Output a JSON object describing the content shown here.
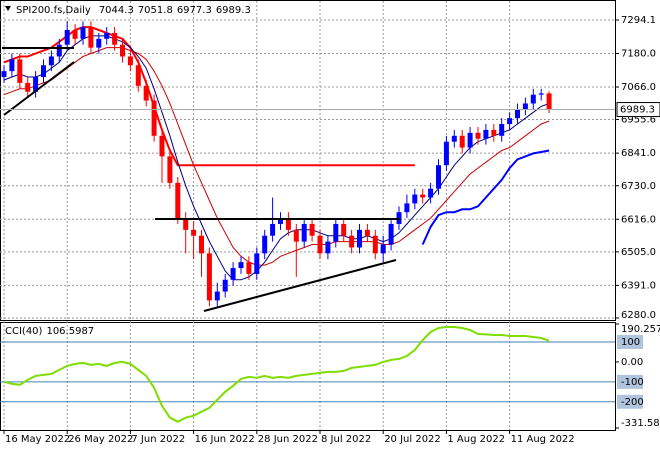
{
  "chart_data": [
    {
      "type": "candlestick",
      "title": "SPI200.fs,Daily",
      "categories": [
        "16 May 2022",
        null,
        null,
        null,
        null,
        null,
        null,
        null,
        "26 May 2022",
        null,
        null,
        null,
        null,
        null,
        null,
        null,
        "7 Jun 2022",
        null,
        null,
        null,
        null,
        null,
        null,
        null,
        "16 Jun 2022",
        null,
        null,
        null,
        null,
        null,
        null,
        null,
        "28 Jun 2022",
        null,
        null,
        null,
        null,
        null,
        null,
        null,
        "8 Jul 2022",
        null,
        null,
        null,
        null,
        null,
        null,
        null,
        "20 Jul 2022",
        null,
        null,
        null,
        null,
        null,
        null,
        null,
        "1 Aug 2022",
        null,
        null,
        null,
        null,
        null,
        null,
        null,
        "11 Aug 2022",
        null,
        null,
        null,
        null,
        null
      ],
      "open": [
        7100,
        7120,
        7160,
        7080,
        7050,
        7100,
        7140,
        7170,
        7210,
        7260,
        7230,
        7270,
        7200,
        7230,
        7250,
        7210,
        7170,
        7140,
        7070,
        7020,
        6900,
        6830,
        6740,
        6620,
        6580,
        6560,
        6500,
        6340,
        6370,
        6410,
        6450,
        6470,
        6430,
        6500,
        6560,
        6600,
        6620,
        6580,
        6540,
        6600,
        6560,
        6500,
        6540,
        6600,
        6560,
        6520,
        6580,
        6560,
        6500,
        6530,
        6600,
        6640,
        6670,
        6700,
        6690,
        6720,
        6800,
        6880,
        6900,
        6860,
        6910,
        6890,
        6920,
        6900,
        6940,
        6960,
        6990,
        7010,
        7040,
        7044.3
      ],
      "high": [
        7140,
        7180,
        7180,
        7100,
        7120,
        7160,
        7190,
        7230,
        7290,
        7280,
        7290,
        7290,
        7250,
        7270,
        7270,
        7230,
        7190,
        7160,
        7090,
        7040,
        6920,
        6850,
        6760,
        6640,
        6610,
        6580,
        6520,
        6400,
        6430,
        6470,
        6490,
        6490,
        6520,
        6580,
        6690,
        6640,
        6640,
        6600,
        6620,
        6620,
        6580,
        6560,
        6620,
        6620,
        6580,
        6600,
        6600,
        6580,
        6560,
        6620,
        6660,
        6700,
        6720,
        6720,
        6740,
        6820,
        6900,
        6920,
        6920,
        6930,
        6930,
        6940,
        6940,
        6960,
        6980,
        7010,
        7030,
        7060,
        7060,
        7051.8
      ],
      "low": [
        7080,
        7100,
        7060,
        7030,
        7030,
        7080,
        7120,
        7150,
        7190,
        7210,
        7210,
        7180,
        7180,
        7210,
        7190,
        7150,
        7120,
        7050,
        7000,
        6880,
        6740,
        6720,
        6600,
        6500,
        6480,
        6420,
        6320,
        6320,
        6350,
        6390,
        6430,
        6410,
        6410,
        6480,
        6540,
        6580,
        6560,
        6420,
        6520,
        6540,
        6480,
        6480,
        6520,
        6540,
        6500,
        6500,
        6540,
        6480,
        6470,
        6510,
        6580,
        6620,
        6650,
        6670,
        6670,
        6700,
        6780,
        6860,
        6840,
        6840,
        6870,
        6870,
        6880,
        6880,
        6920,
        6940,
        6970,
        6990,
        7020,
        6977.3
      ],
      "close": [
        7120,
        7160,
        7080,
        7050,
        7100,
        7140,
        7170,
        7210,
        7260,
        7230,
        7270,
        7200,
        7230,
        7250,
        7210,
        7170,
        7140,
        7070,
        7020,
        6900,
        6830,
        6740,
        6620,
        6580,
        6560,
        6500,
        6340,
        6370,
        6410,
        6450,
        6470,
        6430,
        6500,
        6560,
        6600,
        6620,
        6580,
        6540,
        6600,
        6560,
        6500,
        6540,
        6600,
        6560,
        6520,
        6580,
        6560,
        6500,
        6530,
        6600,
        6640,
        6670,
        6700,
        6690,
        6720,
        6800,
        6880,
        6900,
        6860,
        6910,
        6890,
        6920,
        6900,
        6940,
        6960,
        6990,
        7010,
        7040,
        7044.3,
        6989.3
      ],
      "up_color": "#0000ff",
      "down_color": "#ff0000",
      "lines": [
        {
          "color": "#ff0000",
          "width": 2,
          "values": [
            7150,
            7160,
            7170,
            7170,
            7180,
            7190,
            7200,
            7220,
            7240,
            7260,
            7270,
            7270,
            7260,
            7250,
            7240,
            7230,
            7200,
            7150,
            7080,
            7000,
            6920,
            6850,
            6800,
            6800,
            6800,
            6800,
            6800,
            6800,
            6800,
            6800,
            6800,
            6800,
            6800,
            6800,
            6800,
            6800,
            6800,
            6800,
            6800,
            6800,
            6800,
            6800,
            6800,
            6800,
            6800,
            6800,
            6800,
            6800,
            6800,
            6800,
            6800,
            6800,
            6800,
            null,
            null,
            null,
            null,
            null,
            null,
            null,
            null,
            null,
            null,
            null,
            null,
            null,
            null,
            null,
            null,
            null
          ]
        },
        {
          "color": "#cc0000",
          "width": 1,
          "values": [
            7040,
            7050,
            7060,
            7060,
            7070,
            7080,
            7090,
            7110,
            7130,
            7150,
            7170,
            7180,
            7190,
            7200,
            7200,
            7200,
            7190,
            7180,
            7160,
            7120,
            7070,
            7010,
            6940,
            6870,
            6800,
            6740,
            6680,
            6620,
            6570,
            6520,
            6490,
            6470,
            6460,
            6460,
            6470,
            6490,
            6500,
            6510,
            6520,
            6530,
            6530,
            6530,
            6540,
            6540,
            6540,
            6540,
            6540,
            6540,
            6530,
            6530,
            6540,
            6560,
            6580,
            6600,
            6620,
            6650,
            6680,
            6710,
            6740,
            6770,
            6790,
            6810,
            6830,
            6850,
            6860,
            6880,
            6900,
            6920,
            6940,
            6950
          ]
        },
        {
          "color": "#000080",
          "width": 1,
          "values": [
            7090,
            7100,
            7110,
            7100,
            7100,
            7110,
            7130,
            7150,
            7190,
            7210,
            7230,
            7240,
            7240,
            7240,
            7230,
            7220,
            7200,
            7170,
            7130,
            7060,
            6980,
            6900,
            6810,
            6730,
            6660,
            6600,
            6540,
            6490,
            6440,
            6410,
            6410,
            6420,
            6440,
            6470,
            6510,
            6550,
            6570,
            6580,
            6580,
            6580,
            6570,
            6560,
            6560,
            6560,
            6550,
            6550,
            6560,
            6550,
            6540,
            6550,
            6570,
            6600,
            6630,
            6660,
            6690,
            6720,
            6760,
            6800,
            6830,
            6860,
            6880,
            6890,
            6900,
            6910,
            6920,
            6940,
            6960,
            6980,
            7000,
            7010
          ]
        },
        {
          "color": "#0000ff",
          "width": 2,
          "values": [
            null,
            null,
            null,
            null,
            null,
            null,
            null,
            null,
            null,
            null,
            null,
            null,
            null,
            null,
            null,
            null,
            null,
            null,
            null,
            null,
            null,
            null,
            null,
            null,
            null,
            null,
            null,
            null,
            null,
            null,
            null,
            null,
            null,
            null,
            null,
            null,
            null,
            null,
            null,
            null,
            null,
            null,
            null,
            null,
            null,
            null,
            null,
            null,
            null,
            null,
            null,
            null,
            null,
            6530,
            6590,
            6630,
            6640,
            6640,
            6650,
            6650,
            6660,
            6690,
            6720,
            6750,
            6790,
            6820,
            6830,
            6840,
            6845,
            6850
          ]
        }
      ],
      "ylim": [
        6273.2,
        7355.3
      ],
      "yticks": [
        7294.1,
        {
          "value": 7180,
          "label": "7180.0"
        },
        {
          "value": 7066,
          "label": "7066.0"
        },
        6955.6,
        {
          "value": 6841,
          "label": "6841.0"
        },
        {
          "value": 6730,
          "label": "6730.0"
        },
        {
          "value": 6616,
          "label": "6616.0"
        },
        {
          "value": 6505,
          "label": "6505.0"
        },
        {
          "value": 6391,
          "label": "6391.0"
        },
        {
          "value": 6280,
          "label": "6280.0"
        }
      ],
      "grid": true
    },
    {
      "type": "line",
      "title": "CCI(40)",
      "color": "#7fdd00",
      "values": [
        -100,
        -110,
        -115,
        -90,
        -70,
        -65,
        -60,
        -40,
        -20,
        -10,
        -5,
        -15,
        -10,
        -20,
        -5,
        0,
        -10,
        -40,
        -70,
        -130,
        -220,
        -280,
        -300,
        -280,
        -270,
        -250,
        -230,
        -190,
        -150,
        -120,
        -85,
        -75,
        -80,
        -70,
        -80,
        -75,
        -80,
        -70,
        -65,
        -60,
        -55,
        -50,
        -50,
        -45,
        -30,
        -25,
        -20,
        -15,
        0,
        10,
        15,
        30,
        60,
        110,
        150,
        170,
        175,
        175,
        170,
        160,
        140,
        138,
        135,
        135,
        130,
        130,
        130,
        125,
        120,
        106.5987
      ],
      "ylim": [
        -331.583,
        190.2577
      ],
      "yticks": [
        190.2577,
        {
          "value": 0,
          "label": "0.00"
        },
        -331.583
      ],
      "levels": [
        100,
        -100,
        -200
      ],
      "level_color": "#4682b4"
    }
  ]
}
